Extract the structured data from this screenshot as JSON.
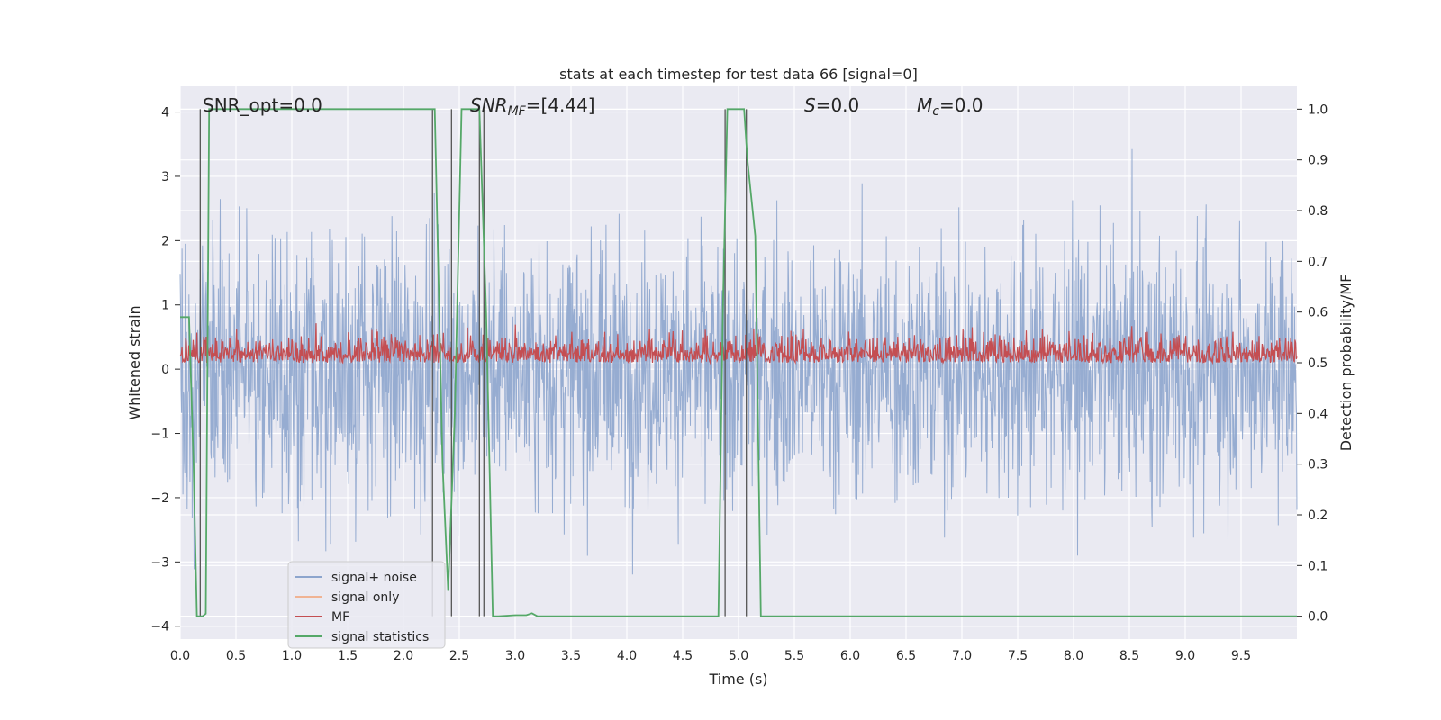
{
  "chart_data": {
    "type": "line",
    "title": "stats at each timestep for test data 66 [signal=0]",
    "xlabel": "Time (s)",
    "ylabel_left": "Whitened strain",
    "ylabel_right": "Detection probability/MF",
    "xlim": [
      0.0,
      10.0
    ],
    "ylim_left": [
      -4.2,
      4.4
    ],
    "ylim_right": [
      -0.045,
      1.045
    ],
    "x_ticks": [
      0.0,
      0.5,
      1.0,
      1.5,
      2.0,
      2.5,
      3.0,
      3.5,
      4.0,
      4.5,
      5.0,
      5.5,
      6.0,
      6.5,
      7.0,
      7.5,
      8.0,
      8.5,
      9.0,
      9.5
    ],
    "x_tick_labels": [
      "0.0",
      "0.5",
      "1.0",
      "1.5",
      "2.0",
      "2.5",
      "3.0",
      "3.5",
      "4.0",
      "4.5",
      "5.0",
      "5.5",
      "6.0",
      "6.5",
      "7.0",
      "7.5",
      "8.0",
      "8.5",
      "9.0",
      "9.5"
    ],
    "y_left_ticks": [
      4,
      3,
      2,
      1,
      0,
      -1,
      -2,
      -3,
      -4
    ],
    "y_left_tick_labels": [
      "4",
      "3",
      "2",
      "1",
      "0",
      "−1",
      "−2",
      "−3",
      "−4"
    ],
    "y_right_ticks": [
      1.0,
      0.9,
      0.8,
      0.7,
      0.6,
      0.5,
      0.4,
      0.3,
      0.2,
      0.1,
      0.0
    ],
    "y_right_tick_labels": [
      "1.0",
      "0.9",
      "0.8",
      "0.7",
      "0.6",
      "0.5",
      "0.4",
      "0.3",
      "0.2",
      "0.1",
      "0.0"
    ],
    "grid": true,
    "annotations": [
      "SNR_opt=0.0",
      "SNR",
      "MF",
      "=[4.44]",
      "S",
      "=0.0",
      "M",
      "c",
      "=0.0"
    ],
    "legend": {
      "placement": "lower-left",
      "entries": [
        {
          "label": "signal+ noise",
          "color": "#8da5cd"
        },
        {
          "label": "signal only",
          "color": "#f0b393"
        },
        {
          "label": "MF",
          "color": "#c44e52"
        },
        {
          "label": "signal statistics",
          "color": "#55a868"
        }
      ]
    },
    "series": [
      {
        "name": "signal+ noise",
        "axis": "left",
        "color": "#8da5cd",
        "description_level": "white noise, amplitude mostly within ±2.5, peaks near ±3.7"
      },
      {
        "name": "MF",
        "axis": "right",
        "color": "#c44e52",
        "baseline": 0.5,
        "peak_max": 0.58
      },
      {
        "name": "signal statistics",
        "axis": "right",
        "color": "#55a868",
        "x": [
          0.0,
          0.05,
          0.08,
          0.12,
          0.15,
          0.2,
          0.23,
          0.26,
          2.25,
          2.28,
          2.35,
          2.4,
          2.46,
          2.52,
          2.6,
          2.68,
          2.74,
          2.8,
          2.85,
          3.0,
          3.1,
          3.15,
          3.2,
          4.82,
          4.86,
          4.9,
          4.95,
          5.05,
          5.08,
          5.15,
          5.2,
          5.25,
          10.0
        ],
        "y": [
          0.59,
          0.59,
          0.59,
          0.3,
          0.0,
          0.0,
          0.005,
          1.0,
          1.0,
          1.0,
          0.3,
          0.05,
          0.4,
          1.0,
          1.0,
          1.0,
          0.6,
          0.0,
          0.0,
          0.002,
          0.002,
          0.006,
          0.0,
          0.0,
          0.6,
          1.0,
          1.0,
          1.0,
          0.9,
          0.75,
          0.0,
          0.0,
          0.0
        ]
      }
    ],
    "vertical_lines_x": [
      0.18,
      2.26,
      2.43,
      2.68,
      2.72,
      4.88,
      5.07
    ]
  }
}
